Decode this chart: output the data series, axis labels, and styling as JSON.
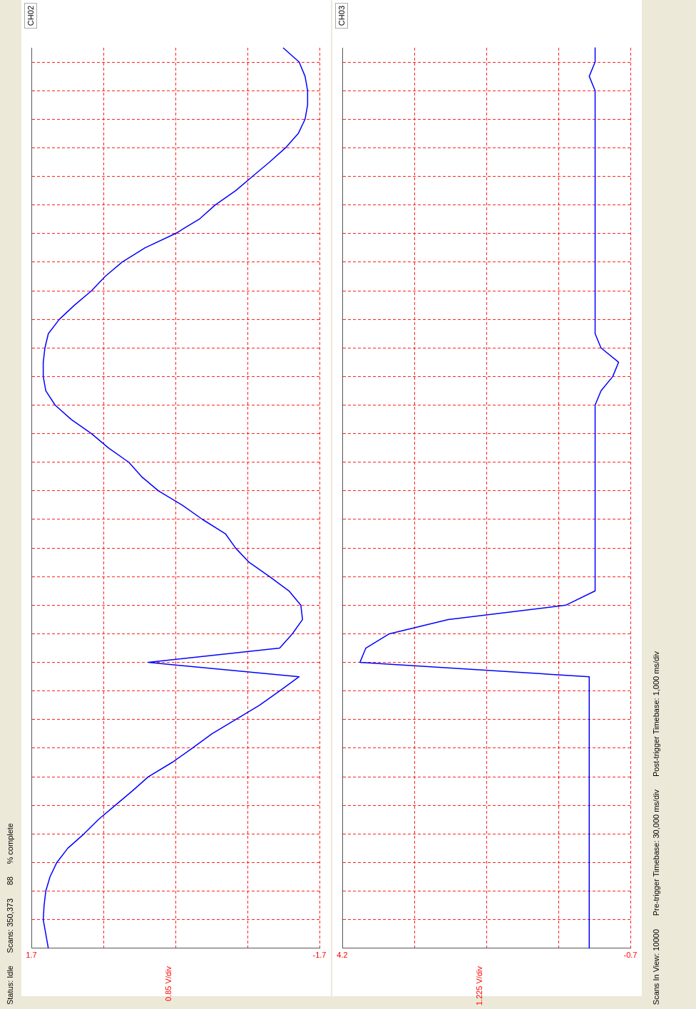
{
  "chart_data": [
    {
      "type": "line",
      "orientation": "horizontal",
      "title": "CH02",
      "categories": [
        null,
        null,
        null,
        null,
        null,
        null,
        null,
        null,
        null,
        null,
        null,
        null,
        null,
        null,
        null,
        null,
        null,
        null,
        null,
        null,
        null,
        null,
        null,
        null,
        null,
        null,
        null,
        null,
        null,
        null,
        null,
        null,
        null,
        null,
        null,
        null,
        null,
        null,
        null,
        null,
        null,
        null,
        null,
        null,
        null,
        null,
        null,
        null,
        null,
        null,
        null,
        null,
        null,
        null,
        null,
        null,
        null,
        null,
        null,
        null,
        null,
        null,
        null,
        null
      ],
      "series": [
        {
          "color": "#0000ff",
          "values": [
            -1.27,
            -1.46,
            -1.53,
            -1.56,
            -1.56,
            -1.53,
            -1.45,
            -1.3,
            -1.11,
            -0.91,
            -0.71,
            -0.47,
            -0.28,
            0.0,
            0.36,
            0.63,
            0.83,
            0.99,
            1.19,
            1.37,
            1.5,
            1.54,
            1.56,
            1.56,
            1.53,
            1.42,
            1.23,
            0.99,
            0.79,
            0.55,
            0.4,
            0.2,
            -0.08,
            -0.32,
            -0.59,
            -0.71,
            -0.87,
            -1.11,
            -1.34,
            -1.48,
            -1.5,
            -1.38,
            -1.23,
            0.32,
            -1.46,
            -1.23,
            -0.99,
            -0.71,
            -0.43,
            -0.2,
            0.04,
            0.32,
            0.51,
            0.71,
            0.91,
            1.08,
            1.27,
            1.4,
            1.48,
            1.53,
            1.55,
            1.56,
            1.53,
            1.5
          ]
        }
      ],
      "xlim": [
        1.7,
        -1.7
      ],
      "xticks": [
        1.7,
        {
          "value": 0.85,
          "label": null
        },
        {
          "value": 0,
          "label": null
        },
        {
          "value": -0.85,
          "label": null
        },
        -1.7
      ],
      "grid": true,
      "marker": "none",
      "tick_labels": "x",
      "annotations": [
        "0.85 V/div",
        "Status: Idle",
        "Scans: 350,373",
        "88",
        "% complete"
      ]
    },
    {
      "type": "line",
      "orientation": "horizontal",
      "title": "CH03",
      "categories": [
        null,
        null,
        null,
        null,
        null,
        null,
        null,
        null,
        null,
        null,
        null,
        null,
        null,
        null,
        null,
        null,
        null,
        null,
        null,
        null,
        null,
        null,
        null,
        null,
        null,
        null,
        null,
        null,
        null,
        null,
        null,
        null,
        null,
        null,
        null,
        null,
        null,
        null,
        null,
        null,
        null,
        null,
        null,
        null,
        null,
        null,
        null,
        null,
        null,
        null,
        null,
        null,
        null,
        null,
        null,
        null,
        null,
        null,
        null,
        null,
        null,
        null,
        null,
        null
      ],
      "series": [
        {
          "color": "#0000ff",
          "values": [
            -0.1,
            -0.1,
            0.0,
            -0.1,
            -0.1,
            -0.1,
            -0.1,
            -0.1,
            -0.1,
            -0.1,
            -0.1,
            -0.1,
            -0.1,
            -0.1,
            -0.1,
            -0.1,
            -0.1,
            -0.1,
            -0.1,
            -0.1,
            -0.1,
            -0.2,
            -0.5,
            -0.4,
            -0.2,
            -0.1,
            -0.1,
            -0.1,
            -0.1,
            -0.1,
            -0.1,
            -0.1,
            -0.1,
            -0.1,
            -0.1,
            -0.1,
            -0.1,
            -0.1,
            -0.1,
            0.4,
            2.4,
            3.4,
            3.8,
            3.9,
            0,
            0,
            0,
            0,
            0,
            0,
            0,
            0,
            0,
            0,
            0,
            0,
            0,
            0,
            0,
            0,
            0,
            0,
            0,
            0
          ]
        }
      ],
      "xlim": [
        4.2,
        -0.7
      ],
      "xticks": [
        4.2,
        {
          "value": 2.975,
          "label": null
        },
        {
          "value": 1.75,
          "label": null
        },
        {
          "value": 0.525,
          "label": null
        },
        -0.7
      ],
      "grid": true,
      "marker": "none",
      "tick_labels": "x",
      "annotations": [
        "1.225 V/div",
        "Scans In View: 10000",
        "Pre-trigger Timebase: 30,000 ms/div",
        "Post-trigger Timebase: 1,000 ms/div"
      ]
    }
  ]
}
